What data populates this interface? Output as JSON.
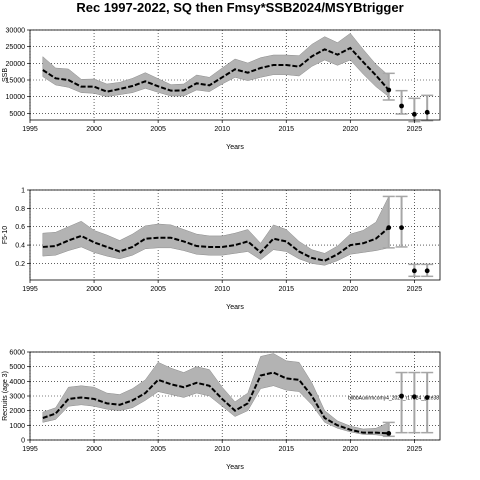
{
  "figure_title": "Rec 1997-2022, SQ then Fmsy*SSB2024/MSYBtrigger",
  "colors": {
    "band": "#b3b3b3",
    "band_edge": "#8c8c8c",
    "median": "#000000",
    "forecast_bar": "#a6a6a6",
    "grid": "#000000"
  },
  "chart_data": [
    {
      "type": "line",
      "title": "",
      "xlabel": "Years",
      "ylabel": "SSB",
      "xlim": [
        1995,
        2027
      ],
      "ylim": [
        3000,
        30000
      ],
      "xticks": [
        1995,
        2000,
        2005,
        2010,
        2015,
        2020,
        2025
      ],
      "yticks": [
        5000,
        10000,
        15000,
        20000,
        25000,
        30000
      ],
      "grid": "dotted",
      "x": [
        1996,
        1997,
        1998,
        1999,
        2000,
        2001,
        2002,
        2003,
        2004,
        2005,
        2006,
        2007,
        2008,
        2009,
        2010,
        2011,
        2012,
        2013,
        2014,
        2015,
        2016,
        2017,
        2018,
        2019,
        2020,
        2021,
        2022,
        2023
      ],
      "median": [
        18000,
        15500,
        15000,
        13000,
        13000,
        11500,
        12300,
        13200,
        14600,
        13100,
        11800,
        11900,
        14000,
        13400,
        15800,
        18200,
        17200,
        18600,
        19500,
        19500,
        19000,
        22100,
        24200,
        22600,
        24600,
        20400,
        16400,
        12000
      ],
      "lower": [
        16000,
        13500,
        12800,
        11200,
        11000,
        10000,
        10600,
        11200,
        12500,
        11300,
        10200,
        10200,
        12000,
        11500,
        13800,
        15800,
        14800,
        15800,
        16600,
        16600,
        16200,
        19100,
        21000,
        19400,
        21000,
        16800,
        13000,
        10000
      ],
      "upper": [
        22000,
        18600,
        18300,
        15200,
        15300,
        13800,
        14300,
        15500,
        17200,
        15400,
        13600,
        13800,
        16500,
        15800,
        18600,
        21300,
        20100,
        21700,
        22500,
        22500,
        22300,
        25700,
        28000,
        26200,
        29000,
        24200,
        19700,
        16300
      ],
      "forecast": [
        {
          "x": 2024,
          "value": 7200,
          "low": 4800,
          "high": 11800
        },
        {
          "x": 2025,
          "value": 4700,
          "low": 2500,
          "high": 9500
        },
        {
          "x": 2026,
          "value": 5300,
          "low": 2800,
          "high": 10400
        }
      ],
      "end_point": {
        "x": 2023,
        "value": 12000,
        "low": 9000,
        "high": 17000
      }
    },
    {
      "type": "line",
      "title": "",
      "xlabel": "Years",
      "ylabel": "F5-10",
      "xlim": [
        1995,
        2027
      ],
      "ylim": [
        0.02,
        1.0
      ],
      "xticks": [
        1995,
        2000,
        2005,
        2010,
        2015,
        2020,
        2025
      ],
      "yticks": [
        0.2,
        0.4,
        0.6,
        0.8,
        1.0
      ],
      "grid": "dotted",
      "x": [
        1996,
        1997,
        1998,
        1999,
        2000,
        2001,
        2002,
        2003,
        2004,
        2005,
        2006,
        2007,
        2008,
        2009,
        2010,
        2011,
        2012,
        2013,
        2014,
        2015,
        2016,
        2017,
        2018,
        2019,
        2020,
        2021,
        2022,
        2023
      ],
      "median": [
        0.38,
        0.39,
        0.45,
        0.5,
        0.43,
        0.38,
        0.33,
        0.38,
        0.47,
        0.48,
        0.48,
        0.44,
        0.39,
        0.38,
        0.38,
        0.4,
        0.44,
        0.32,
        0.47,
        0.44,
        0.33,
        0.26,
        0.23,
        0.3,
        0.4,
        0.42,
        0.47,
        0.59
      ],
      "lower": [
        0.28,
        0.29,
        0.34,
        0.38,
        0.32,
        0.28,
        0.25,
        0.29,
        0.36,
        0.37,
        0.37,
        0.34,
        0.3,
        0.29,
        0.29,
        0.31,
        0.33,
        0.24,
        0.35,
        0.33,
        0.25,
        0.2,
        0.18,
        0.23,
        0.3,
        0.32,
        0.34,
        0.37
      ],
      "upper": [
        0.53,
        0.54,
        0.6,
        0.66,
        0.56,
        0.51,
        0.45,
        0.52,
        0.61,
        0.63,
        0.62,
        0.57,
        0.52,
        0.5,
        0.5,
        0.53,
        0.57,
        0.42,
        0.62,
        0.57,
        0.44,
        0.35,
        0.31,
        0.39,
        0.52,
        0.56,
        0.65,
        0.93
      ],
      "forecast": [
        {
          "x": 2024,
          "value": 0.59,
          "low": 0.38,
          "high": 0.93
        },
        {
          "x": 2025,
          "value": 0.12,
          "low": 0.06,
          "high": 0.19
        },
        {
          "x": 2026,
          "value": 0.12,
          "low": 0.06,
          "high": 0.19
        }
      ],
      "end_point": {
        "x": 2023,
        "value": 0.59,
        "low": 0.37,
        "high": 0.93
      }
    },
    {
      "type": "line",
      "title": "",
      "xlabel": "Years",
      "ylabel": "Recruits (age 3)",
      "xlim": [
        1995,
        2027
      ],
      "ylim": [
        0,
        6000
      ],
      "xticks": [
        1995,
        2000,
        2005,
        2010,
        2015,
        2020,
        2025
      ],
      "yticks": [
        0,
        1000,
        2000,
        3000,
        4000,
        5000,
        6000
      ],
      "grid": "dotted",
      "x": [
        1996,
        1997,
        1998,
        1999,
        2000,
        2001,
        2002,
        2003,
        2004,
        2005,
        2006,
        2007,
        2008,
        2009,
        2010,
        2011,
        2012,
        2013,
        2014,
        2015,
        2016,
        2017,
        2018,
        2019,
        2020,
        2021,
        2022,
        2023
      ],
      "median": [
        1500,
        1800,
        2800,
        2900,
        2800,
        2500,
        2400,
        2700,
        3200,
        4100,
        3800,
        3600,
        3900,
        3700,
        2800,
        2000,
        2500,
        4400,
        4600,
        4200,
        4100,
        3000,
        1500,
        1000,
        700,
        500,
        500,
        450
      ],
      "lower": [
        1200,
        1400,
        2300,
        2400,
        2300,
        2100,
        2000,
        2200,
        2700,
        3300,
        3100,
        2900,
        3200,
        3000,
        2300,
        1600,
        2000,
        3500,
        3700,
        3400,
        3300,
        2400,
        1200,
        800,
        550,
        380,
        350,
        250
      ],
      "upper": [
        1900,
        2200,
        3600,
        3700,
        3600,
        3200,
        3100,
        3500,
        4100,
        5300,
        4900,
        4600,
        5000,
        4800,
        3600,
        2600,
        3200,
        5700,
        5900,
        5400,
        5300,
        3900,
        2000,
        1300,
        950,
        750,
        800,
        1200
      ],
      "forecast": [
        {
          "x": 2024,
          "value": 3000,
          "low": 500,
          "high": 4600
        },
        {
          "x": 2025,
          "value": 2950,
          "low": 500,
          "high": 4600
        },
        {
          "x": 2026,
          "value": 2900,
          "low": 500,
          "high": 4600
        }
      ],
      "end_point": {
        "x": 2023,
        "value": 450,
        "low": 250,
        "high": 1200
      },
      "annotation": "bilbbAuxirmcomy4_2024_r17924_git:e38"
    }
  ]
}
